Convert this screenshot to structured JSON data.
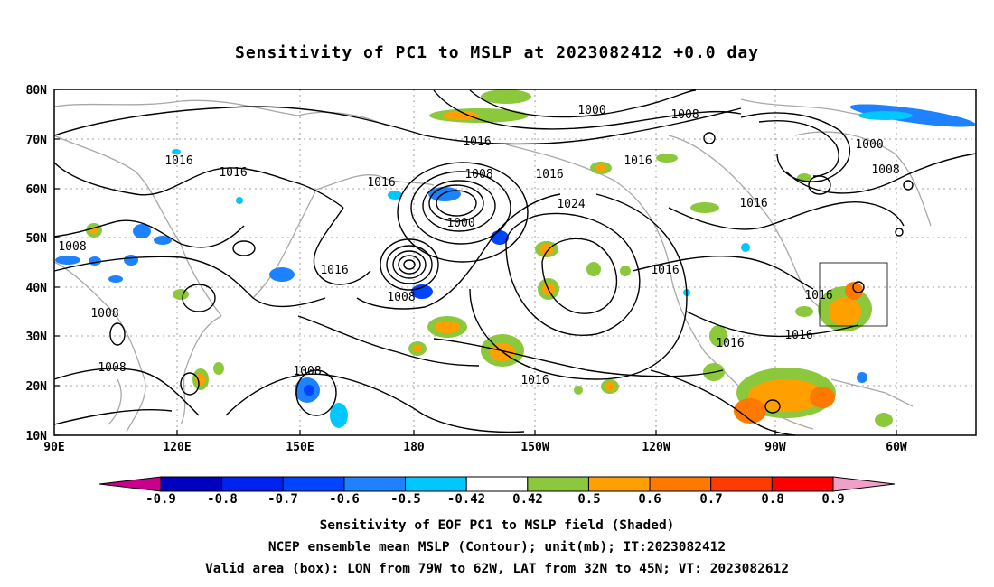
{
  "title": "Sensitivity of PC1 to MSLP at 2023082412 +0.0 day",
  "axes": {
    "lat_labels": [
      "80N",
      "70N",
      "60N",
      "50N",
      "40N",
      "30N",
      "20N",
      "10N"
    ],
    "lon_labels": [
      "90E",
      "120E",
      "150E",
      "180",
      "150W",
      "120W",
      "90W",
      "60W"
    ]
  },
  "contour_labels": [
    "1000",
    "1008",
    "1016",
    "1008",
    "1000",
    "1016",
    "1008",
    "1016",
    "1016",
    "1016",
    "1008",
    "1016",
    "1016",
    "1008",
    "1000",
    "1016",
    "1008",
    "1016",
    "1024",
    "1016",
    "1000",
    "1008",
    "1016",
    "1016",
    "1016",
    "1008",
    "1008",
    "1016"
  ],
  "colorbar": {
    "labels": [
      "-0.9",
      "-0.8",
      "-0.7",
      "-0.6",
      "-0.5",
      "-0.42",
      "0.42",
      "0.5",
      "0.6",
      "0.7",
      "0.8",
      "0.9"
    ],
    "colors": [
      "#c8008c",
      "#0000c0",
      "#0022f0",
      "#0044ff",
      "#1e82ff",
      "#00c8ff",
      "#ffffff",
      "#8cc83c",
      "#ffa000",
      "#ff7800",
      "#ff3c00",
      "#ff0000",
      "#f0a0c8"
    ]
  },
  "captions": {
    "line1": "Sensitivity of EOF PC1 to MSLP field (Shaded)",
    "line2": "NCEP ensemble mean MSLP (Contour); unit(mb); IT:2023082412",
    "line3": "Valid area (box): LON from 79W to 62W, LAT from 32N to 45N; VT: 2023082612"
  }
}
